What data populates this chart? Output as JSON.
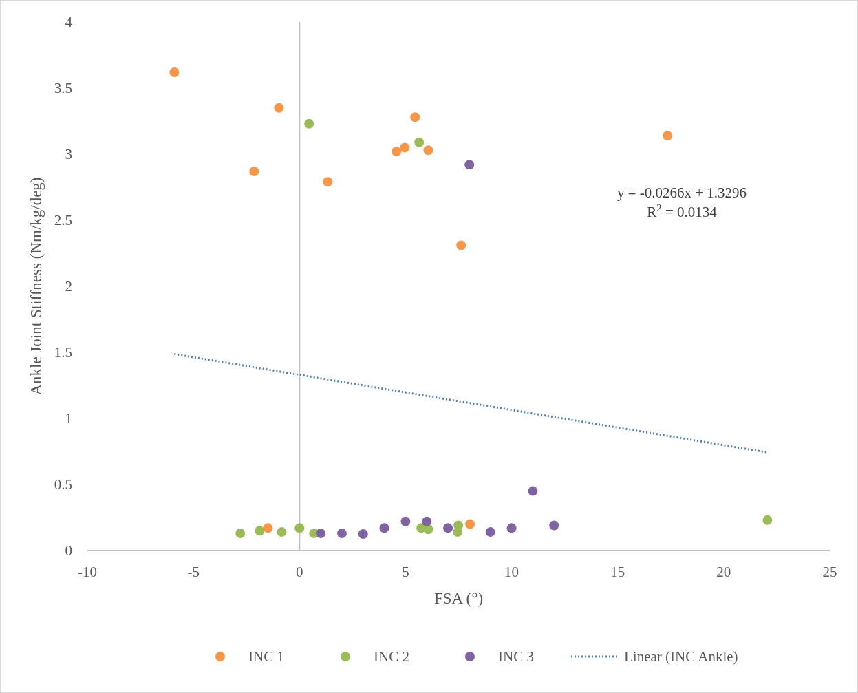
{
  "chart_data": {
    "type": "scatter",
    "xlabel": "FSA (°)",
    "ylabel": "Ankle Joint Stiffness (Nm/kg/deg)",
    "xlim": [
      -10,
      25
    ],
    "xticks": [
      -10,
      -5,
      0,
      5,
      10,
      15,
      20,
      25
    ],
    "ylim": [
      0,
      4
    ],
    "yticks": [
      0,
      0.5,
      1,
      1.5,
      2,
      2.5,
      3,
      3.5,
      4
    ],
    "legend": "bottom",
    "annotations": [
      "y = -0.0266x + 1.3296",
      "R$^{2}$ = 0.0134"
    ],
    "series": [
      {
        "name": "INC 1",
        "color": "#f79646",
        "marker": "circle",
        "x": [
          -5.9,
          -0.97,
          -2.14,
          1.33,
          5.45,
          4.57,
          4.96,
          6.07,
          7.62,
          17.35,
          -1.49,
          8.04
        ],
        "values": [
          3.62,
          3.35,
          2.87,
          2.79,
          3.28,
          3.02,
          3.05,
          3.03,
          2.31,
          3.14,
          0.17,
          0.2
        ]
      },
      {
        "name": "INC 2",
        "color": "#9bbb59",
        "marker": "circle",
        "x": [
          0.45,
          5.64,
          -2.79,
          -1.88,
          -0.84,
          0,
          0.68,
          5.74,
          6.07,
          7.49,
          7.46,
          22.06
        ],
        "values": [
          3.23,
          3.09,
          0.13,
          0.15,
          0.14,
          0.17,
          0.13,
          0.17,
          0.16,
          0.19,
          0.14,
          0.23
        ]
      },
      {
        "name": "INC 3",
        "color": "#8064a2",
        "marker": "circle",
        "x": [
          8.01,
          1,
          2,
          3,
          4,
          5,
          6,
          7,
          9,
          10,
          11,
          12
        ],
        "values": [
          2.92,
          0.13,
          0.13,
          0.125,
          0.17,
          0.22,
          0.22,
          0.17,
          0.14,
          0.17,
          0.45,
          0.19
        ]
      },
      {
        "name": "Linear (INC Ankle)",
        "type": "line",
        "color": "#4f81bd",
        "line_style": "dotted",
        "marker": "none",
        "x": [
          -5.9,
          22.06
        ],
        "values": [
          1.487,
          0.743
        ]
      }
    ]
  }
}
